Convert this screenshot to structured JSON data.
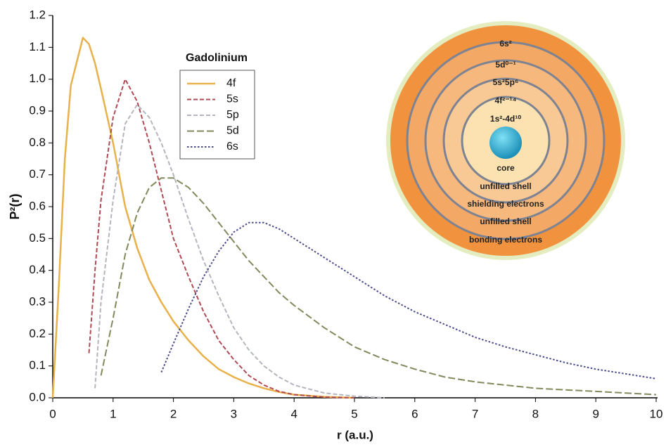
{
  "chart_data": {
    "type": "line",
    "x_label": "r (a.u.)",
    "y_label": "P²(r)",
    "legend_title": "Gadolinium",
    "x": [
      0,
      0.1,
      0.2,
      0.3,
      0.5,
      0.6,
      0.7,
      0.8,
      1,
      1.2,
      1.4,
      1.6,
      1.8,
      2,
      2.25,
      2.5,
      2.75,
      3,
      3.25,
      3.5,
      3.75,
      4,
      4.5,
      5,
      5.5,
      6,
      6.5,
      7,
      7.5,
      8,
      8.5,
      9,
      9.5,
      10
    ],
    "series": [
      {
        "name": "4f",
        "color": "#e8b14a",
        "dash": "solid",
        "values": [
          0,
          0.35,
          0.75,
          0.98,
          1.13,
          1.11,
          1.05,
          0.97,
          0.8,
          0.6,
          0.47,
          0.37,
          0.3,
          0.24,
          0.18,
          0.13,
          0.09,
          0.065,
          0.045,
          0.03,
          0.018,
          0.01,
          0.003,
          0,
          null,
          null,
          null,
          null,
          null,
          null,
          null,
          null,
          null,
          null
        ]
      },
      {
        "name": "5s",
        "color": "#b04a55",
        "dash": "dashed",
        "values": [
          null,
          null,
          null,
          null,
          null,
          0.14,
          0.4,
          0.62,
          0.88,
          1.0,
          0.93,
          0.8,
          0.65,
          0.5,
          0.38,
          0.27,
          0.18,
          0.12,
          0.07,
          0.04,
          0.02,
          0.01,
          0.002,
          0,
          null,
          null,
          null,
          null,
          null,
          null,
          null,
          null,
          null,
          null
        ]
      },
      {
        "name": "5p",
        "color": "#b4b6bf",
        "dash": "dashed",
        "values": [
          null,
          null,
          null,
          null,
          null,
          null,
          0.03,
          0.3,
          0.62,
          0.86,
          0.92,
          0.88,
          0.8,
          0.7,
          0.56,
          0.43,
          0.32,
          0.22,
          0.15,
          0.1,
          0.065,
          0.04,
          0.015,
          0.005,
          0,
          null,
          null,
          null,
          null,
          null,
          null,
          null,
          null,
          null
        ]
      },
      {
        "name": "5d",
        "color": "#808a5c",
        "dash": "longdash",
        "values": [
          null,
          null,
          null,
          null,
          null,
          null,
          null,
          0.07,
          0.25,
          0.45,
          0.58,
          0.66,
          0.69,
          0.69,
          0.66,
          0.61,
          0.55,
          0.49,
          0.43,
          0.38,
          0.33,
          0.29,
          0.22,
          0.16,
          0.12,
          0.09,
          0.065,
          0.05,
          0.04,
          0.03,
          0.025,
          0.02,
          0.015,
          0.01
        ]
      },
      {
        "name": "6s",
        "color": "#4b4a8c",
        "dash": "dotted",
        "values": [
          null,
          null,
          null,
          null,
          null,
          null,
          null,
          null,
          null,
          null,
          null,
          null,
          0.08,
          0.17,
          0.28,
          0.38,
          0.46,
          0.52,
          0.55,
          0.55,
          0.53,
          0.5,
          0.44,
          0.38,
          0.32,
          0.27,
          0.23,
          0.19,
          0.16,
          0.135,
          0.11,
          0.09,
          0.075,
          0.06
        ]
      }
    ],
    "xlim": [
      0,
      10
    ],
    "xticks": [
      0,
      1,
      2,
      3,
      4,
      5,
      6,
      7,
      8,
      9,
      10
    ],
    "ylim": [
      0,
      1.2
    ],
    "yticks": [
      {
        "value": 0,
        "label": "0.0"
      },
      0.1,
      0.2,
      0.3,
      0.4,
      0.5,
      0.6,
      0.7,
      0.8,
      0.9,
      {
        "value": 1,
        "label": "1.0"
      },
      1.1,
      1.2
    ],
    "grid": false
  },
  "inset": {
    "configurations": [
      "6s²",
      "5d⁰⁻¹",
      "5s²5p⁶",
      "4f²⁻¹⁴",
      "1s²-4d¹⁰"
    ],
    "roles": [
      "core",
      "unfilled shell",
      "shielding electrons",
      "unfilled shell",
      "bonding electrons"
    ]
  }
}
